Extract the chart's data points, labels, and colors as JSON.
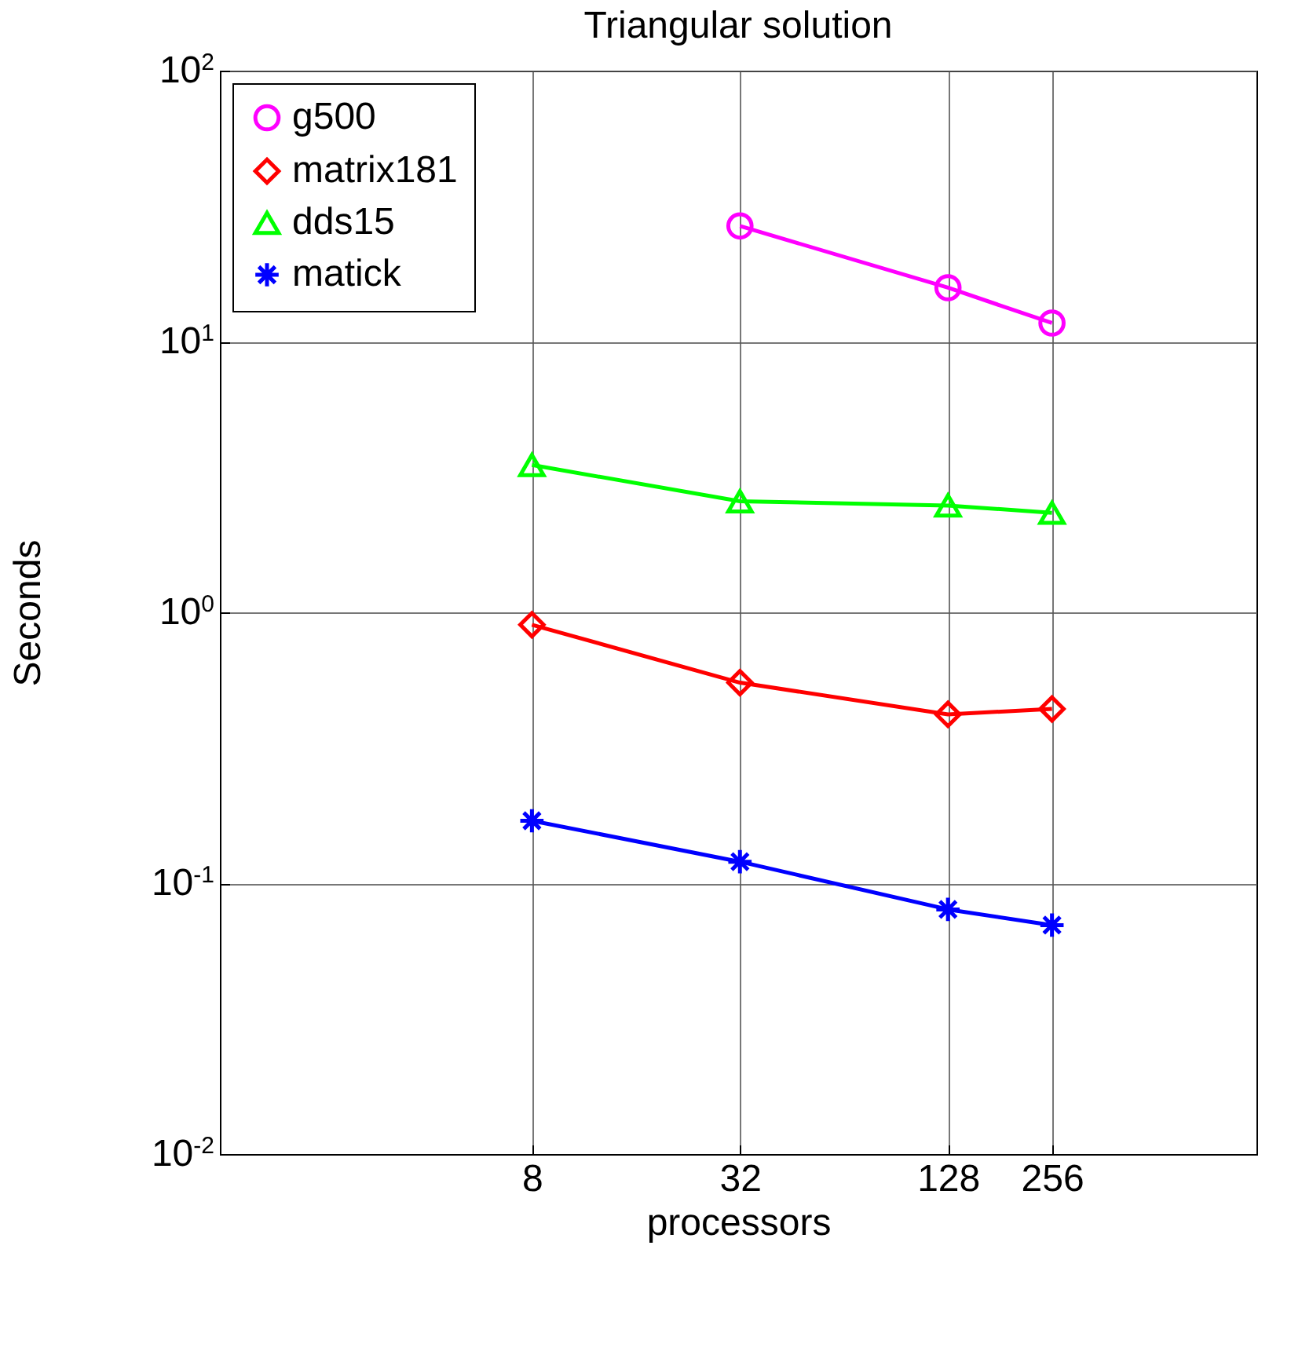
{
  "chart_data": {
    "type": "line",
    "title": "Triangular solution",
    "xlabel": "processors",
    "ylabel": "Seconds",
    "x": [
      8,
      32,
      128,
      256
    ],
    "series": [
      {
        "name": "g500",
        "color": "#ff00ff",
        "marker": "circle",
        "values": [
          null,
          26.7,
          15.8,
          11.7
        ]
      },
      {
        "name": "matrix181",
        "color": "#ff0000",
        "marker": "diamond",
        "values": [
          0.9,
          0.55,
          0.42,
          0.44
        ]
      },
      {
        "name": "dds15",
        "color": "#00ff00",
        "marker": "triangle",
        "values": [
          3.5,
          2.57,
          2.48,
          2.33
        ]
      },
      {
        "name": "matick",
        "color": "#0000ff",
        "marker": "cross",
        "values": [
          0.17,
          0.12,
          0.08,
          0.07
        ]
      }
    ],
    "log": "xy",
    "xlim": [
      1,
      1000
    ],
    "xticks": [
      8,
      32,
      128,
      256
    ],
    "ylim": [
      0.01,
      100
    ],
    "yticks": [
      {
        "value": 0.01,
        "label": "10$^{-2}$"
      },
      {
        "value": 0.1,
        "label": "10$^{-1}$"
      },
      {
        "value": 1,
        "label": "10$^{0}$"
      },
      {
        "value": 10,
        "label": "10$^{1}$"
      },
      {
        "value": 100,
        "label": "10$^{2}$"
      }
    ],
    "grid": true,
    "legend": "top left",
    "line_style": "solid"
  }
}
